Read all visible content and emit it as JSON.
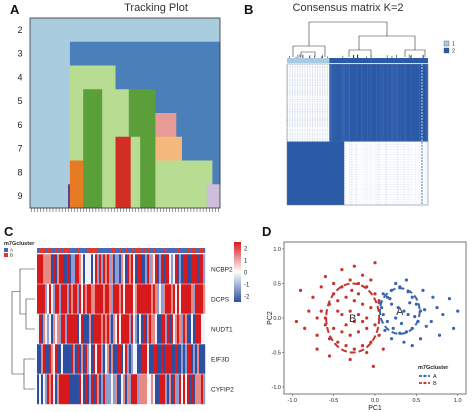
{
  "panels": {
    "A": {
      "letter": "A",
      "chart_data": {
        "type": "heatmap",
        "title": "Tracking Plot",
        "y_tick_labels": [
          "2",
          "3",
          "4",
          "5",
          "6",
          "7",
          "8",
          "9"
        ],
        "colors": {
          "lightblue": "#aaccdf",
          "blue": "#4a7fb9",
          "lightgreen": "#b9dc93",
          "green": "#5a9f3a",
          "red": "#d22e24",
          "pink": "#e89a96",
          "orange": "#e77b23",
          "peach": "#f3b97a",
          "lavender": "#cdbedd",
          "purple": "#5d3f8f"
        },
        "rows": [
          [
            [
              "lightblue",
              0,
              100
            ]
          ],
          [
            [
              "lightblue",
              0,
              21
            ],
            [
              "blue",
              21,
              100
            ]
          ],
          [
            [
              "lightblue",
              0,
              21
            ],
            [
              "lightgreen",
              21,
              45
            ],
            [
              "blue",
              45,
              100
            ]
          ],
          [
            [
              "lightblue",
              0,
              21
            ],
            [
              "lightgreen",
              21,
              28
            ],
            [
              "green",
              28,
              38
            ],
            [
              "lightgreen",
              38,
              52
            ],
            [
              "green",
              52,
              66
            ],
            [
              "blue",
              66,
              100
            ]
          ],
          [
            [
              "lightblue",
              0,
              21
            ],
            [
              "lightgreen",
              21,
              28
            ],
            [
              "green",
              28,
              38
            ],
            [
              "lightgreen",
              38,
              52
            ],
            [
              "green",
              52,
              66
            ],
            [
              "pink",
              66,
              77
            ],
            [
              "blue",
              77,
              100
            ]
          ],
          [
            [
              "lightblue",
              0,
              21
            ],
            [
              "lightgreen",
              21,
              28
            ],
            [
              "green",
              28,
              38
            ],
            [
              "lightgreen",
              38,
              45
            ],
            [
              "red",
              45,
              53
            ],
            [
              "lightgreen",
              53,
              58
            ],
            [
              "green",
              58,
              66
            ],
            [
              "peach",
              66,
              80
            ],
            [
              "blue",
              80,
              100
            ]
          ],
          [
            [
              "lightblue",
              0,
              21
            ],
            [
              "orange",
              21,
              28
            ],
            [
              "green",
              28,
              38
            ],
            [
              "lightgreen",
              38,
              45
            ],
            [
              "red",
              45,
              53
            ],
            [
              "lightgreen",
              53,
              58
            ],
            [
              "green",
              58,
              66
            ],
            [
              "lightgreen",
              66,
              96
            ],
            [
              "blue",
              96,
              100
            ]
          ],
          [
            [
              "lightblue",
              0,
              20
            ],
            [
              "purple",
              20,
              21
            ],
            [
              "orange",
              21,
              28
            ],
            [
              "green",
              28,
              38
            ],
            [
              "lightgreen",
              38,
              45
            ],
            [
              "red",
              45,
              53
            ],
            [
              "lightgreen",
              53,
              58
            ],
            [
              "green",
              58,
              66
            ],
            [
              "lightgreen",
              66,
              93
            ],
            [
              "lavender",
              93,
              100
            ]
          ]
        ]
      }
    },
    "B": {
      "letter": "B",
      "chart_data": {
        "type": "heatmap",
        "title": "Consensus matrix K=2",
        "legend": [
          "1",
          "2"
        ],
        "colors": {
          "cluster1": "#a6cbe3",
          "cluster2": "#2b5aa7",
          "background": "#ffffff"
        },
        "cluster1_fraction": 0.3,
        "legend_placement": "right"
      }
    },
    "C": {
      "letter": "C",
      "chart_data": {
        "type": "heatmap",
        "annotation_label": "m7Gcluster",
        "annotation_legend": [
          "A",
          "B"
        ],
        "annotation_colors": {
          "A": "#4a68b5",
          "B": "#d73c2f"
        },
        "genes": [
          "NCBP2",
          "DCPS",
          "NUDT1",
          "EIF3D",
          "CYFIP2"
        ],
        "colorbar_ticks": [
          2,
          1,
          0,
          -1,
          -2
        ],
        "colorbar_range": [
          -2.5,
          2.5
        ],
        "colors": {
          "high": "#d7191c",
          "mid": "#ffffff",
          "low": "#2c4fa1"
        }
      }
    },
    "D": {
      "letter": "D",
      "chart_data": {
        "type": "scatter",
        "xlabel": "PC1",
        "ylabel": "PC2",
        "xlim": [
          -1.1,
          1.1
        ],
        "ylim": [
          -1.1,
          1.1
        ],
        "x_ticks": [
          "-1.0",
          "-0.5",
          "0.0",
          "0.5",
          "1.0"
        ],
        "y_ticks": [
          "-1.0",
          "-0.5",
          "0.0",
          "0.5",
          "1.0"
        ],
        "legend_title": "m7Gcluster",
        "legend_placement": "bottom-right",
        "cluster_labels": [
          "A",
          "B"
        ],
        "colors": {
          "A": "#3a66b0",
          "B": "#c7332e"
        },
        "ellipses": [
          {
            "name": "A",
            "cx": 0.3,
            "cy": 0.1,
            "rx": 0.24,
            "ry": 0.33
          },
          {
            "name": "B",
            "cx": -0.27,
            "cy": 0.0,
            "rx": 0.32,
            "ry": 0.5
          }
        ],
        "series": [
          {
            "name": "A",
            "points": [
              [
                0.1,
                0.35
              ],
              [
                0.15,
                0.3
              ],
              [
                0.2,
                0.4
              ],
              [
                0.3,
                0.45
              ],
              [
                0.4,
                0.38
              ],
              [
                0.45,
                0.3
              ],
              [
                0.5,
                0.2
              ],
              [
                0.55,
                0.1
              ],
              [
                0.52,
                -0.05
              ],
              [
                0.45,
                -0.15
              ],
              [
                0.38,
                -0.2
              ],
              [
                0.3,
                -0.22
              ],
              [
                0.22,
                -0.15
              ],
              [
                0.15,
                -0.05
              ],
              [
                0.1,
                0.05
              ],
              [
                0.08,
                0.15
              ],
              [
                0.2,
                0.2
              ],
              [
                0.28,
                0.15
              ],
              [
                0.35,
                0.1
              ],
              [
                0.4,
                0.05
              ],
              [
                0.25,
                0.0
              ],
              [
                0.32,
                -0.08
              ],
              [
                0.18,
                0.28
              ],
              [
                0.42,
                0.22
              ],
              [
                0.48,
                0.02
              ],
              [
                0.6,
                0.12
              ],
              [
                0.7,
                0.3
              ],
              [
                0.75,
                0.15
              ],
              [
                0.62,
                -0.12
              ],
              [
                0.55,
                -0.3
              ],
              [
                0.35,
                -0.35
              ],
              [
                0.25,
                0.5
              ],
              [
                0.12,
                -0.18
              ],
              [
                0.05,
                0.22
              ],
              [
                0.82,
                0.05
              ],
              [
                0.9,
                0.28
              ],
              [
                1.0,
                0.1
              ],
              [
                0.68,
                -0.05
              ],
              [
                0.58,
                0.4
              ],
              [
                0.38,
                0.55
              ],
              [
                0.45,
                -0.4
              ],
              [
                0.2,
                -0.3
              ],
              [
                0.78,
                -0.25
              ],
              [
                0.95,
                -0.15
              ]
            ]
          },
          {
            "name": "B",
            "points": [
              [
                -0.6,
                0.6
              ],
              [
                -0.5,
                0.5
              ],
              [
                -0.4,
                0.45
              ],
              [
                -0.3,
                0.55
              ],
              [
                -0.2,
                0.5
              ],
              [
                -0.1,
                0.45
              ],
              [
                0.0,
                0.35
              ],
              [
                0.05,
                0.25
              ],
              [
                -0.05,
                0.15
              ],
              [
                -0.15,
                0.2
              ],
              [
                -0.25,
                0.25
              ],
              [
                -0.35,
                0.3
              ],
              [
                -0.45,
                0.25
              ],
              [
                -0.55,
                0.2
              ],
              [
                -0.65,
                0.1
              ],
              [
                -0.7,
                0.0
              ],
              [
                -0.6,
                -0.1
              ],
              [
                -0.5,
                -0.15
              ],
              [
                -0.4,
                -0.2
              ],
              [
                -0.3,
                -0.25
              ],
              [
                -0.2,
                -0.2
              ],
              [
                -0.1,
                -0.15
              ],
              [
                0.0,
                -0.1
              ],
              [
                0.05,
                -0.25
              ],
              [
                -0.05,
                -0.35
              ],
              [
                -0.15,
                -0.4
              ],
              [
                -0.25,
                -0.45
              ],
              [
                -0.35,
                -0.4
              ],
              [
                -0.45,
                -0.35
              ],
              [
                -0.55,
                -0.3
              ],
              [
                -0.75,
                0.3
              ],
              [
                -0.8,
                0.1
              ],
              [
                -0.85,
                -0.15
              ],
              [
                -0.7,
                -0.25
              ],
              [
                -0.65,
                0.45
              ],
              [
                -0.3,
                0.1
              ],
              [
                -0.2,
                0.05
              ],
              [
                -0.4,
                0.05
              ],
              [
                -0.1,
                0.0
              ],
              [
                -0.25,
                -0.05
              ],
              [
                -0.35,
                -0.1
              ],
              [
                -0.15,
                -0.05
              ],
              [
                -0.45,
                0.1
              ],
              [
                -0.5,
                0.35
              ],
              [
                -0.2,
                0.35
              ],
              [
                -0.05,
                0.55
              ],
              [
                -0.4,
                0.7
              ],
              [
                -0.25,
                0.75
              ],
              [
                -0.1,
                -0.5
              ],
              [
                -0.3,
                -0.6
              ],
              [
                -0.9,
                0.4
              ],
              [
                -0.95,
                -0.05
              ],
              [
                0.1,
                -0.45
              ],
              [
                -0.15,
                0.62
              ],
              [
                -0.55,
                -0.55
              ],
              [
                -0.7,
                -0.45
              ],
              [
                0.0,
                0.8
              ],
              [
                -0.02,
                -0.7
              ],
              [
                -0.6,
                0.0
              ],
              [
                -0.28,
                0.4
              ]
            ]
          }
        ]
      }
    }
  }
}
